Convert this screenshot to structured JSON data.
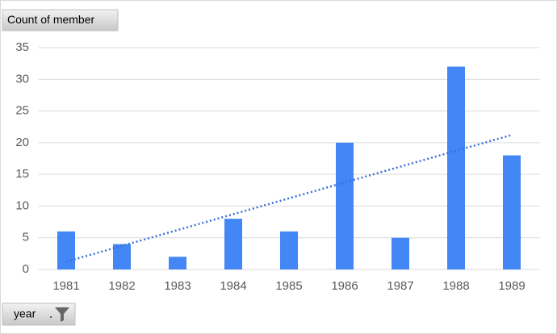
{
  "chart_data": {
    "type": "bar",
    "value_field_button": "Count of member",
    "axis_field_button": "year",
    "categories": [
      "1981",
      "1982",
      "1983",
      "1984",
      "1985",
      "1986",
      "1987",
      "1988",
      "1989"
    ],
    "values": [
      6,
      4,
      2,
      8,
      6,
      20,
      5,
      32,
      18
    ],
    "color": "#4287f5",
    "trendline": "linear",
    "trendline_color": "#3a6fd8",
    "ylim": [
      0,
      35
    ],
    "yticks": [
      0,
      5,
      10,
      15,
      20,
      25,
      30,
      35
    ],
    "grid": true
  }
}
